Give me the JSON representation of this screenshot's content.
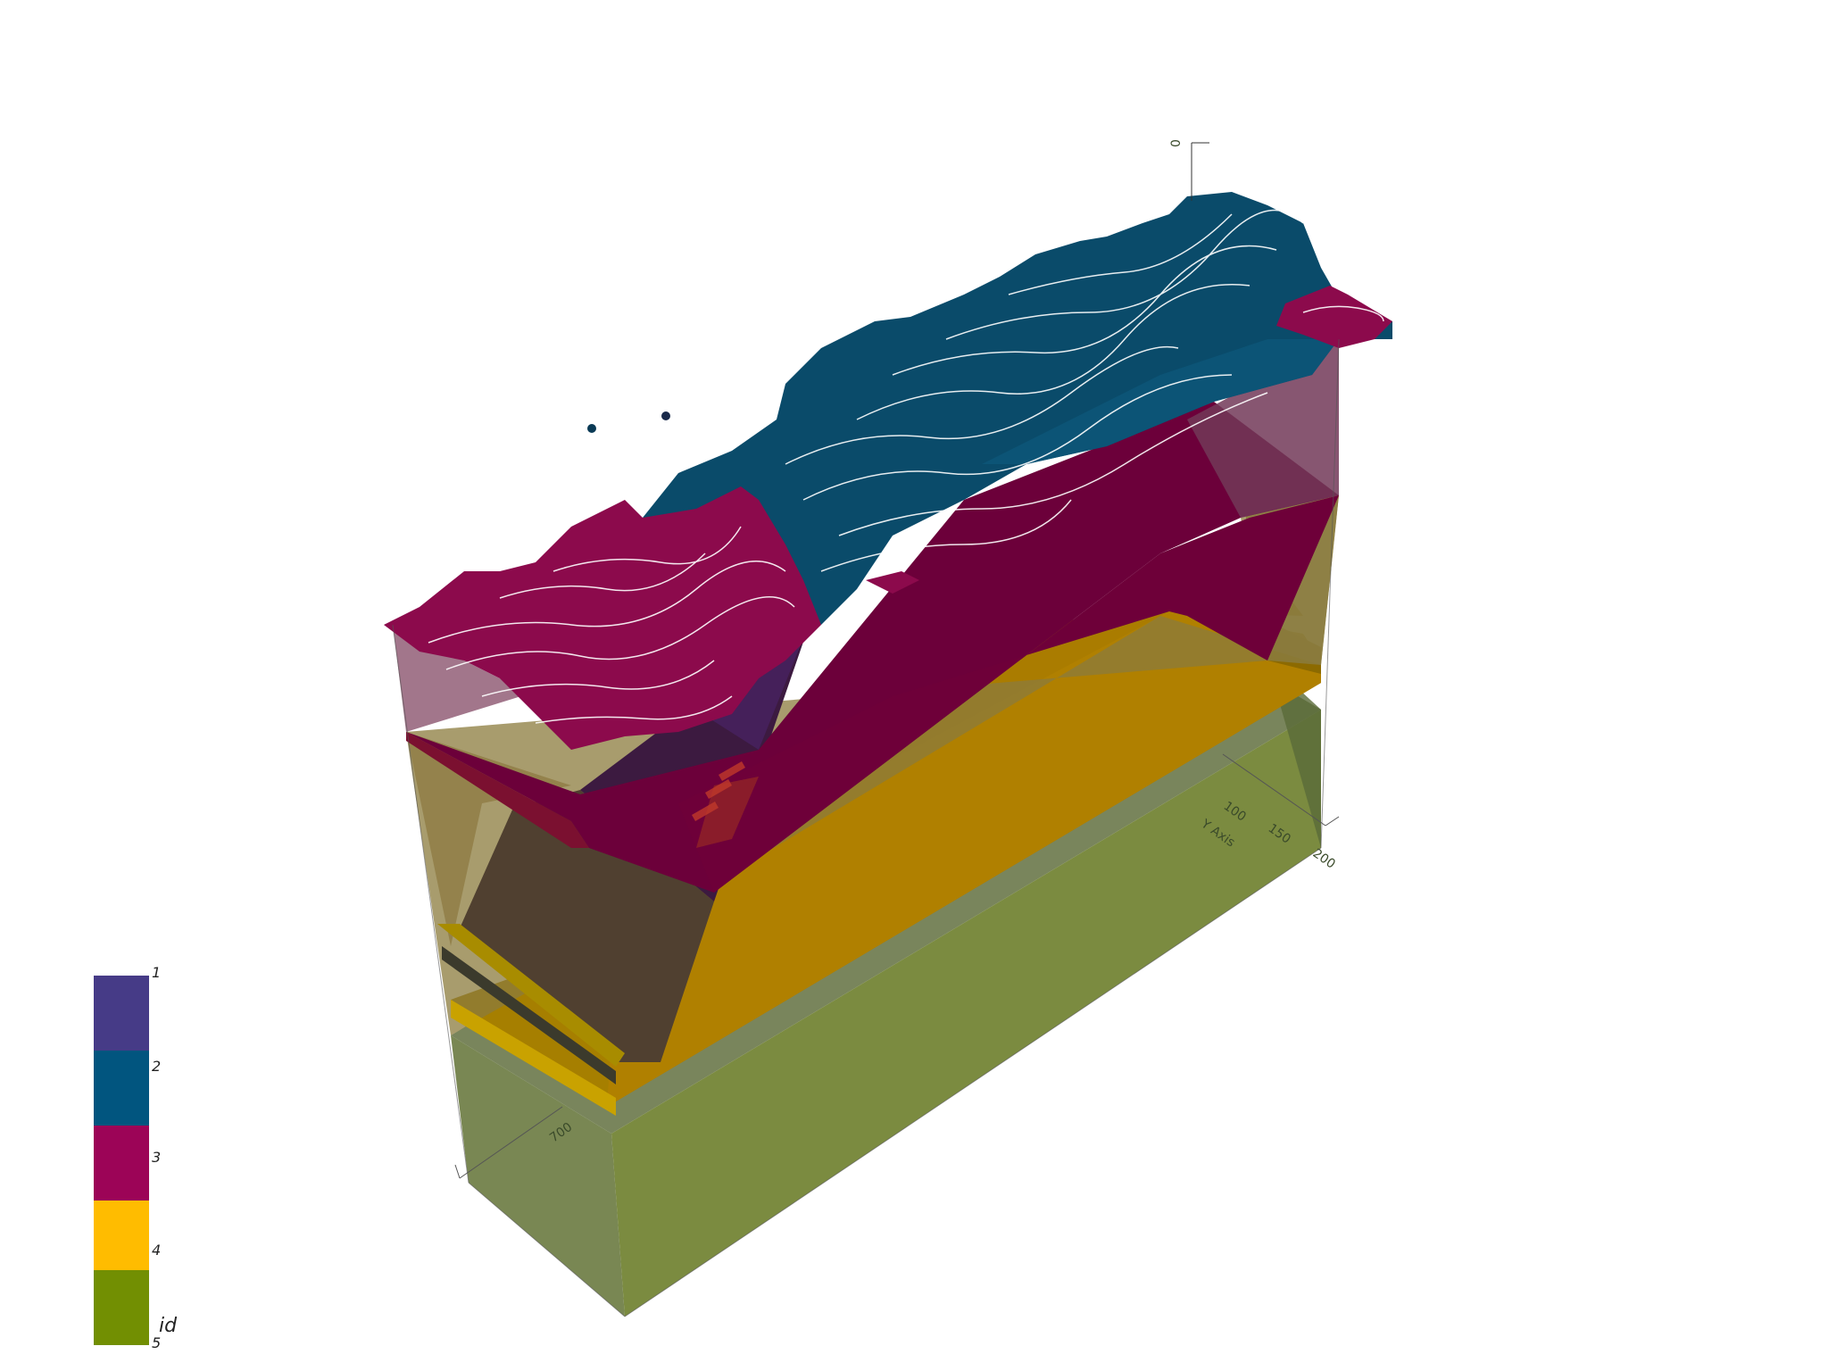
{
  "scene": {
    "background": "#ffffff"
  },
  "axes": {
    "z_tick": "0",
    "y_label": "Y Axis",
    "y_ticks": [
      "100",
      "150",
      "200"
    ],
    "x_tick": "700"
  },
  "legend": {
    "title": "id",
    "entries": [
      {
        "label": "1",
        "color": "#463b87"
      },
      {
        "label": "2",
        "color": "#01557f"
      },
      {
        "label": "3",
        "color": "#9c0457"
      },
      {
        "label": "4",
        "color": "#ffbc00"
      },
      {
        "label": "5",
        "color": "#728f02"
      }
    ]
  }
}
